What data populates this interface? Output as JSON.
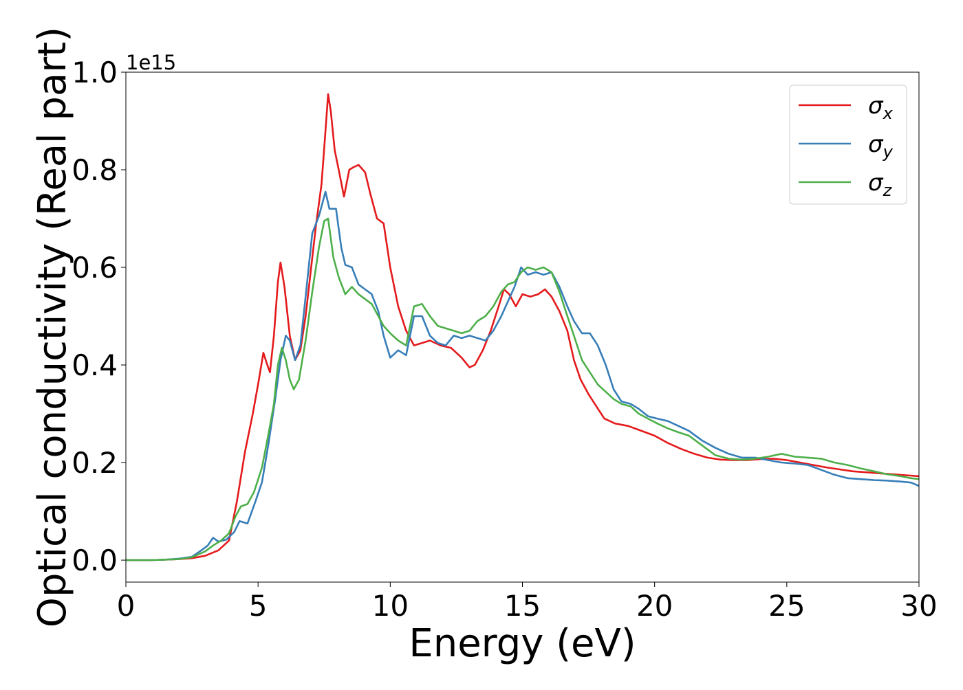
{
  "chart_data": {
    "type": "line",
    "xlabel": "Energy (eV)",
    "ylabel": "Optical conductivity (Real part)",
    "offset_text": "1e15",
    "xlim": [
      0,
      30
    ],
    "ylim": [
      -0.045,
      1.0
    ],
    "x_ticks": [
      0,
      5,
      10,
      15,
      20,
      25,
      30
    ],
    "x_tick_labels": [
      "0",
      "5",
      "10",
      "15",
      "20",
      "25",
      "30"
    ],
    "y_ticks": [
      0.0,
      0.2,
      0.4,
      0.6,
      0.8,
      1.0
    ],
    "y_tick_labels": [
      "0.0",
      "0.2",
      "0.4",
      "0.6",
      "0.8",
      "1.0"
    ],
    "legend_position": "upper right",
    "grid": false,
    "series": [
      {
        "name": "σx",
        "legend_base": "σ",
        "legend_sub": "x",
        "color": "#e41a1c",
        "points": [
          [
            0,
            0
          ],
          [
            1,
            0
          ],
          [
            1.5,
            0.001
          ],
          [
            2,
            0.002
          ],
          [
            2.5,
            0.004
          ],
          [
            3,
            0.009
          ],
          [
            3.5,
            0.02
          ],
          [
            3.9,
            0.04
          ],
          [
            4.2,
            0.12
          ],
          [
            4.5,
            0.22
          ],
          [
            4.8,
            0.3
          ],
          [
            5,
            0.36
          ],
          [
            5.2,
            0.425
          ],
          [
            5.35,
            0.4
          ],
          [
            5.45,
            0.385
          ],
          [
            5.6,
            0.46
          ],
          [
            5.75,
            0.57
          ],
          [
            5.85,
            0.61
          ],
          [
            6,
            0.56
          ],
          [
            6.2,
            0.46
          ],
          [
            6.4,
            0.41
          ],
          [
            6.6,
            0.43
          ],
          [
            6.8,
            0.5
          ],
          [
            7.05,
            0.62
          ],
          [
            7.2,
            0.69
          ],
          [
            7.4,
            0.77
          ],
          [
            7.55,
            0.88
          ],
          [
            7.65,
            0.955
          ],
          [
            7.75,
            0.92
          ],
          [
            7.9,
            0.84
          ],
          [
            8.05,
            0.8
          ],
          [
            8.25,
            0.745
          ],
          [
            8.45,
            0.8
          ],
          [
            8.6,
            0.805
          ],
          [
            8.8,
            0.81
          ],
          [
            9.05,
            0.795
          ],
          [
            9.25,
            0.75
          ],
          [
            9.5,
            0.7
          ],
          [
            9.75,
            0.69
          ],
          [
            10,
            0.6
          ],
          [
            10.3,
            0.52
          ],
          [
            10.6,
            0.47
          ],
          [
            10.9,
            0.44
          ],
          [
            11.2,
            0.445
          ],
          [
            11.5,
            0.45
          ],
          [
            11.9,
            0.44
          ],
          [
            12.3,
            0.435
          ],
          [
            12.7,
            0.415
          ],
          [
            13,
            0.395
          ],
          [
            13.2,
            0.4
          ],
          [
            13.5,
            0.43
          ],
          [
            13.8,
            0.47
          ],
          [
            14.1,
            0.52
          ],
          [
            14.3,
            0.555
          ],
          [
            14.5,
            0.545
          ],
          [
            14.75,
            0.52
          ],
          [
            15,
            0.545
          ],
          [
            15.3,
            0.54
          ],
          [
            15.6,
            0.545
          ],
          [
            15.85,
            0.555
          ],
          [
            16.1,
            0.54
          ],
          [
            16.4,
            0.51
          ],
          [
            16.7,
            0.47
          ],
          [
            16.95,
            0.41
          ],
          [
            17.2,
            0.37
          ],
          [
            17.5,
            0.34
          ],
          [
            17.8,
            0.315
          ],
          [
            18.1,
            0.29
          ],
          [
            18.5,
            0.28
          ],
          [
            19,
            0.275
          ],
          [
            19.5,
            0.265
          ],
          [
            20,
            0.255
          ],
          [
            20.5,
            0.24
          ],
          [
            21,
            0.228
          ],
          [
            21.5,
            0.218
          ],
          [
            22,
            0.21
          ],
          [
            22.5,
            0.206
          ],
          [
            23,
            0.205
          ],
          [
            23.5,
            0.205
          ],
          [
            24,
            0.207
          ],
          [
            24.5,
            0.208
          ],
          [
            25,
            0.205
          ],
          [
            25.5,
            0.2
          ],
          [
            26,
            0.195
          ],
          [
            26.5,
            0.19
          ],
          [
            27,
            0.186
          ],
          [
            27.5,
            0.182
          ],
          [
            28,
            0.18
          ],
          [
            28.5,
            0.178
          ],
          [
            29,
            0.176
          ],
          [
            29.5,
            0.174
          ],
          [
            30,
            0.172
          ]
        ]
      },
      {
        "name": "σy",
        "legend_base": "σ",
        "legend_sub": "y",
        "color": "#377eb8",
        "points": [
          [
            0,
            0
          ],
          [
            1,
            0
          ],
          [
            1.5,
            0.001
          ],
          [
            2,
            0.003
          ],
          [
            2.5,
            0.007
          ],
          [
            2.8,
            0.018
          ],
          [
            3.1,
            0.03
          ],
          [
            3.3,
            0.046
          ],
          [
            3.5,
            0.038
          ],
          [
            3.8,
            0.042
          ],
          [
            4.1,
            0.058
          ],
          [
            4.3,
            0.08
          ],
          [
            4.6,
            0.075
          ],
          [
            4.9,
            0.12
          ],
          [
            5.15,
            0.16
          ],
          [
            5.4,
            0.24
          ],
          [
            5.65,
            0.33
          ],
          [
            5.85,
            0.41
          ],
          [
            6.05,
            0.46
          ],
          [
            6.2,
            0.45
          ],
          [
            6.4,
            0.41
          ],
          [
            6.6,
            0.44
          ],
          [
            6.8,
            0.54
          ],
          [
            7.05,
            0.67
          ],
          [
            7.3,
            0.705
          ],
          [
            7.55,
            0.755
          ],
          [
            7.7,
            0.72
          ],
          [
            7.95,
            0.72
          ],
          [
            8.15,
            0.64
          ],
          [
            8.3,
            0.605
          ],
          [
            8.55,
            0.6
          ],
          [
            8.8,
            0.565
          ],
          [
            9.05,
            0.555
          ],
          [
            9.3,
            0.545
          ],
          [
            9.55,
            0.51
          ],
          [
            9.75,
            0.46
          ],
          [
            10,
            0.415
          ],
          [
            10.3,
            0.43
          ],
          [
            10.6,
            0.42
          ],
          [
            10.9,
            0.5
          ],
          [
            11.2,
            0.5
          ],
          [
            11.5,
            0.46
          ],
          [
            11.8,
            0.445
          ],
          [
            12.1,
            0.44
          ],
          [
            12.4,
            0.46
          ],
          [
            12.7,
            0.455
          ],
          [
            13,
            0.46
          ],
          [
            13.3,
            0.455
          ],
          [
            13.6,
            0.45
          ],
          [
            13.9,
            0.47
          ],
          [
            14.2,
            0.5
          ],
          [
            14.45,
            0.53
          ],
          [
            14.7,
            0.56
          ],
          [
            14.95,
            0.6
          ],
          [
            15.2,
            0.585
          ],
          [
            15.5,
            0.59
          ],
          [
            15.8,
            0.585
          ],
          [
            16.1,
            0.59
          ],
          [
            16.4,
            0.56
          ],
          [
            16.7,
            0.52
          ],
          [
            16.95,
            0.49
          ],
          [
            17.25,
            0.465
          ],
          [
            17.55,
            0.465
          ],
          [
            17.85,
            0.44
          ],
          [
            18.15,
            0.4
          ],
          [
            18.45,
            0.35
          ],
          [
            18.75,
            0.325
          ],
          [
            19.1,
            0.32
          ],
          [
            19.4,
            0.31
          ],
          [
            19.75,
            0.295
          ],
          [
            20.1,
            0.29
          ],
          [
            20.5,
            0.285
          ],
          [
            20.9,
            0.275
          ],
          [
            21.3,
            0.265
          ],
          [
            21.8,
            0.245
          ],
          [
            22.3,
            0.23
          ],
          [
            22.8,
            0.218
          ],
          [
            23.3,
            0.21
          ],
          [
            23.8,
            0.21
          ],
          [
            24.3,
            0.205
          ],
          [
            24.8,
            0.2
          ],
          [
            25.3,
            0.198
          ],
          [
            25.8,
            0.195
          ],
          [
            26.3,
            0.185
          ],
          [
            26.8,
            0.175
          ],
          [
            27.3,
            0.168
          ],
          [
            27.8,
            0.166
          ],
          [
            28.3,
            0.164
          ],
          [
            28.8,
            0.163
          ],
          [
            29.3,
            0.161
          ],
          [
            29.7,
            0.159
          ],
          [
            30,
            0.152
          ]
        ]
      },
      {
        "name": "σz",
        "legend_base": "σ",
        "legend_sub": "z",
        "color": "#4daf4a",
        "points": [
          [
            0,
            0
          ],
          [
            1,
            0
          ],
          [
            1.5,
            0.001
          ],
          [
            2,
            0.002
          ],
          [
            2.5,
            0.006
          ],
          [
            3,
            0.018
          ],
          [
            3.3,
            0.03
          ],
          [
            3.6,
            0.04
          ],
          [
            3.9,
            0.055
          ],
          [
            4.15,
            0.09
          ],
          [
            4.35,
            0.11
          ],
          [
            4.6,
            0.115
          ],
          [
            4.85,
            0.14
          ],
          [
            5.15,
            0.19
          ],
          [
            5.4,
            0.26
          ],
          [
            5.6,
            0.32
          ],
          [
            5.75,
            0.4
          ],
          [
            5.9,
            0.435
          ],
          [
            6.05,
            0.41
          ],
          [
            6.2,
            0.37
          ],
          [
            6.35,
            0.35
          ],
          [
            6.55,
            0.37
          ],
          [
            6.8,
            0.45
          ],
          [
            7.05,
            0.55
          ],
          [
            7.3,
            0.64
          ],
          [
            7.5,
            0.695
          ],
          [
            7.65,
            0.7
          ],
          [
            7.85,
            0.62
          ],
          [
            8.05,
            0.58
          ],
          [
            8.3,
            0.545
          ],
          [
            8.55,
            0.56
          ],
          [
            8.8,
            0.545
          ],
          [
            9.05,
            0.535
          ],
          [
            9.3,
            0.525
          ],
          [
            9.55,
            0.5
          ],
          [
            9.75,
            0.48
          ],
          [
            10,
            0.465
          ],
          [
            10.3,
            0.45
          ],
          [
            10.6,
            0.44
          ],
          [
            10.9,
            0.52
          ],
          [
            11.2,
            0.525
          ],
          [
            11.5,
            0.5
          ],
          [
            11.8,
            0.48
          ],
          [
            12.1,
            0.475
          ],
          [
            12.4,
            0.47
          ],
          [
            12.7,
            0.465
          ],
          [
            13,
            0.47
          ],
          [
            13.3,
            0.49
          ],
          [
            13.6,
            0.5
          ],
          [
            13.9,
            0.52
          ],
          [
            14.2,
            0.55
          ],
          [
            14.45,
            0.565
          ],
          [
            14.7,
            0.57
          ],
          [
            14.95,
            0.59
          ],
          [
            15.2,
            0.6
          ],
          [
            15.5,
            0.595
          ],
          [
            15.8,
            0.6
          ],
          [
            16.1,
            0.59
          ],
          [
            16.4,
            0.55
          ],
          [
            16.7,
            0.5
          ],
          [
            16.95,
            0.46
          ],
          [
            17.25,
            0.41
          ],
          [
            17.55,
            0.385
          ],
          [
            17.85,
            0.36
          ],
          [
            18.15,
            0.345
          ],
          [
            18.45,
            0.33
          ],
          [
            18.75,
            0.32
          ],
          [
            19.1,
            0.315
          ],
          [
            19.4,
            0.3
          ],
          [
            19.75,
            0.29
          ],
          [
            20.1,
            0.28
          ],
          [
            20.5,
            0.27
          ],
          [
            20.9,
            0.262
          ],
          [
            21.3,
            0.255
          ],
          [
            21.8,
            0.235
          ],
          [
            22.3,
            0.215
          ],
          [
            22.8,
            0.208
          ],
          [
            23.3,
            0.206
          ],
          [
            23.8,
            0.208
          ],
          [
            24.3,
            0.212
          ],
          [
            24.8,
            0.218
          ],
          [
            25.3,
            0.212
          ],
          [
            25.8,
            0.21
          ],
          [
            26.3,
            0.208
          ],
          [
            26.8,
            0.2
          ],
          [
            27.3,
            0.195
          ],
          [
            27.8,
            0.188
          ],
          [
            28.3,
            0.182
          ],
          [
            28.8,
            0.176
          ],
          [
            29.3,
            0.172
          ],
          [
            29.7,
            0.168
          ],
          [
            30,
            0.166
          ]
        ]
      }
    ]
  }
}
